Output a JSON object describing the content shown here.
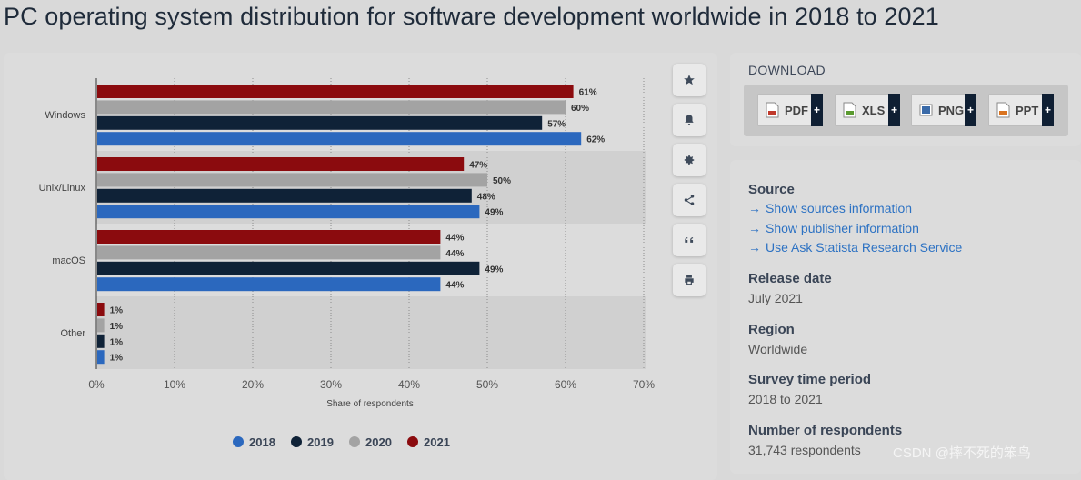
{
  "page": {
    "title": "PC operating system distribution for software development worldwide in 2018 to 2021"
  },
  "chart_data": {
    "type": "bar",
    "orientation": "horizontal",
    "categories": [
      "Windows",
      "Unix/Linux",
      "macOS",
      "Other"
    ],
    "series": [
      {
        "name": "2021",
        "color": "#8b0b0e",
        "values": [
          61,
          47,
          44,
          1
        ]
      },
      {
        "name": "2020",
        "color": "#a3a3a3",
        "values": [
          60,
          50,
          44,
          1
        ]
      },
      {
        "name": "2019",
        "color": "#0f2237",
        "values": [
          57,
          48,
          49,
          1
        ]
      },
      {
        "name": "2018",
        "color": "#2b68be",
        "values": [
          62,
          49,
          44,
          1
        ]
      }
    ],
    "legend_order": [
      "2018",
      "2019",
      "2020",
      "2021"
    ],
    "value_suffix": "%",
    "xlabel": "Share of respondents",
    "ylabel": "",
    "xlim": [
      0,
      70
    ],
    "xticks": [
      0,
      10,
      20,
      30,
      40,
      50,
      60,
      70
    ],
    "tick_suffix": "%",
    "grid": "vertical dotted",
    "legend": "bottom"
  },
  "toolbar": {
    "buttons": [
      {
        "id": "favorite",
        "icon": "star-icon"
      },
      {
        "id": "notify",
        "icon": "bell-icon"
      },
      {
        "id": "settings",
        "icon": "gear-icon"
      },
      {
        "id": "share",
        "icon": "share-icon"
      },
      {
        "id": "cite",
        "icon": "quote-icon"
      },
      {
        "id": "print",
        "icon": "print-icon"
      }
    ]
  },
  "download": {
    "title": "DOWNLOAD",
    "formats": [
      {
        "label": "PDF",
        "icon": "pdf-file-icon",
        "color": "#c0392b"
      },
      {
        "label": "XLS",
        "icon": "xls-file-icon",
        "color": "#5a9a2f"
      },
      {
        "label": "PNG",
        "icon": "png-file-icon",
        "color": "#3a6aa8"
      },
      {
        "label": "PPT",
        "icon": "ppt-file-icon",
        "color": "#d9731f"
      }
    ],
    "plus": "+"
  },
  "info": {
    "source": {
      "heading": "Source",
      "links": [
        "Show sources information",
        "Show publisher information",
        "Use Ask Statista Research Service"
      ]
    },
    "release": {
      "heading": "Release date",
      "value": "July 2021"
    },
    "region": {
      "heading": "Region",
      "value": "Worldwide"
    },
    "survey": {
      "heading": "Survey time period",
      "value": "2018 to 2021"
    },
    "respondents": {
      "heading": "Number of respondents",
      "value": "31,743 respondents"
    }
  },
  "watermark": "CSDN @摔不死的笨鸟"
}
